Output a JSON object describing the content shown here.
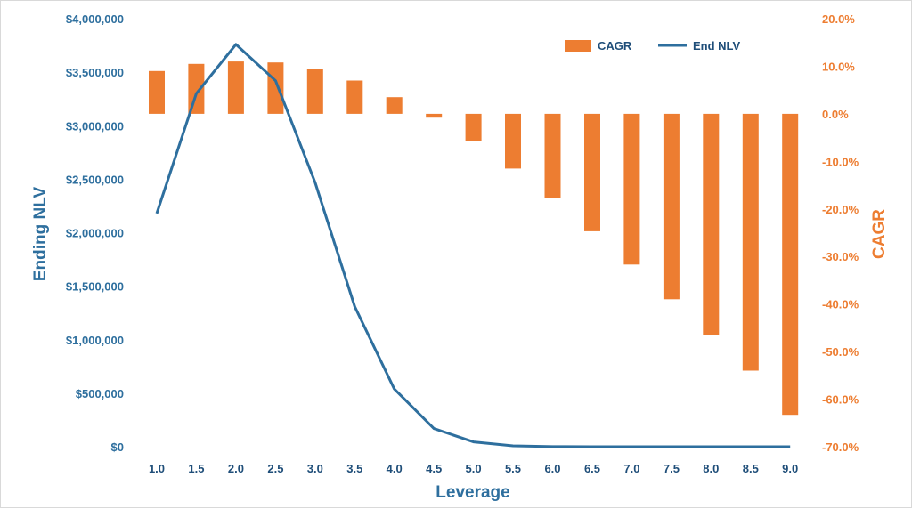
{
  "chart_data": {
    "type": "bar+line",
    "x": [
      1.0,
      1.5,
      2.0,
      2.5,
      3.0,
      3.5,
      4.0,
      4.5,
      5.0,
      5.5,
      6.0,
      6.5,
      7.0,
      7.5,
      8.0,
      8.5,
      9.0
    ],
    "x_tick_labels": [
      "1.0",
      "1.5",
      "2.0",
      "2.5",
      "3.0",
      "3.5",
      "4.0",
      "4.5",
      "5.0",
      "5.5",
      "6.0",
      "6.5",
      "7.0",
      "7.5",
      "8.0",
      "8.5",
      "9.0"
    ],
    "xlabel": "Leverage",
    "ylabel_left": "Ending NLV",
    "ylabel_right": "CAGR",
    "ylim_left": [
      0,
      4000000
    ],
    "ylim_right": [
      -70,
      20
    ],
    "y_left_ticks": [
      "$0",
      "$500,000",
      "$1,000,000",
      "$1,500,000",
      "$2,000,000",
      "$2,500,000",
      "$3,000,000",
      "$3,500,000",
      "$4,000,000"
    ],
    "y_right_ticks": [
      "-70.0%",
      "-60.0%",
      "-50.0%",
      "-40.0%",
      "-30.0%",
      "-20.0%",
      "-10.0%",
      "0.0%",
      "10.0%",
      "20.0%"
    ],
    "grid": false,
    "legend_position": "top-right",
    "series": [
      {
        "name": "CAGR",
        "type": "bar",
        "axis": "right",
        "unit": "%",
        "color": "#ed7d31",
        "values": [
          9.0,
          10.5,
          11.0,
          10.8,
          9.5,
          7.0,
          3.5,
          -0.8,
          -5.7,
          -11.5,
          -17.7,
          -24.7,
          -31.7,
          -39.0,
          -46.5,
          -54.0,
          -63.3
        ]
      },
      {
        "name": "End NLV",
        "type": "line",
        "axis": "left",
        "color": "#2e6f9e",
        "values": [
          2180000,
          3300000,
          3760000,
          3420000,
          2470000,
          1310000,
          540000,
          170000,
          45000,
          8000,
          1000,
          0,
          0,
          0,
          0,
          0,
          0
        ]
      }
    ]
  }
}
